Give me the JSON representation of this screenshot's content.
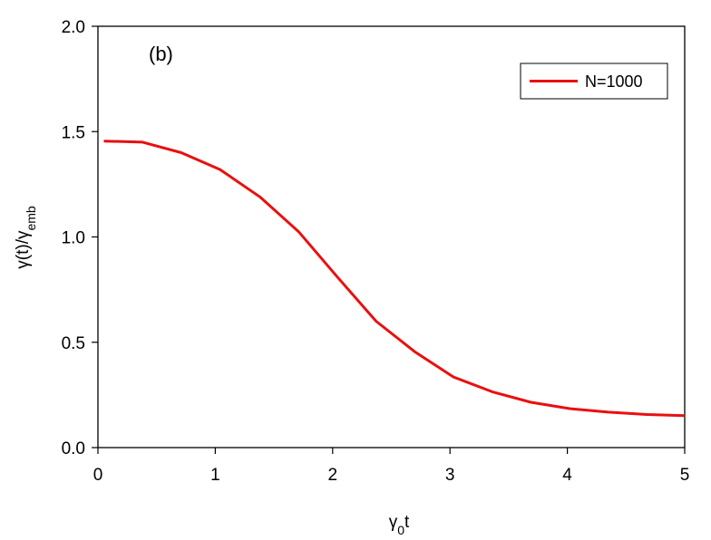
{
  "chart_data": {
    "type": "line",
    "panel_label": "(b)",
    "xlabel": {
      "main": "γ",
      "sub": "0",
      "tail": "t"
    },
    "ylabel": {
      "main": "γ(t)/γ",
      "sub": "emb"
    },
    "xlim": [
      0,
      5
    ],
    "ylim": [
      0,
      2
    ],
    "xticks": [
      0,
      1,
      2,
      3,
      4,
      5
    ],
    "yticks": [
      0.0,
      0.5,
      1.0,
      1.5,
      2.0
    ],
    "xtick_labels": [
      "0",
      "1",
      "2",
      "3",
      "4",
      "5"
    ],
    "ytick_labels": [
      "0.0",
      "0.5",
      "1.0",
      "1.5",
      "2.0"
    ],
    "grid": false,
    "legend_position": "top-right",
    "series": [
      {
        "name": "N=1000",
        "color": "#e8100f",
        "x": [
          0.05,
          0.38,
          0.71,
          1.04,
          1.38,
          1.71,
          2.04,
          2.37,
          2.7,
          3.03,
          3.36,
          3.69,
          4.02,
          4.35,
          4.68,
          5.0
        ],
        "y": [
          1.455,
          1.45,
          1.4,
          1.32,
          1.19,
          1.025,
          0.81,
          0.6,
          0.455,
          0.335,
          0.265,
          0.215,
          0.185,
          0.168,
          0.157,
          0.152
        ]
      }
    ]
  }
}
